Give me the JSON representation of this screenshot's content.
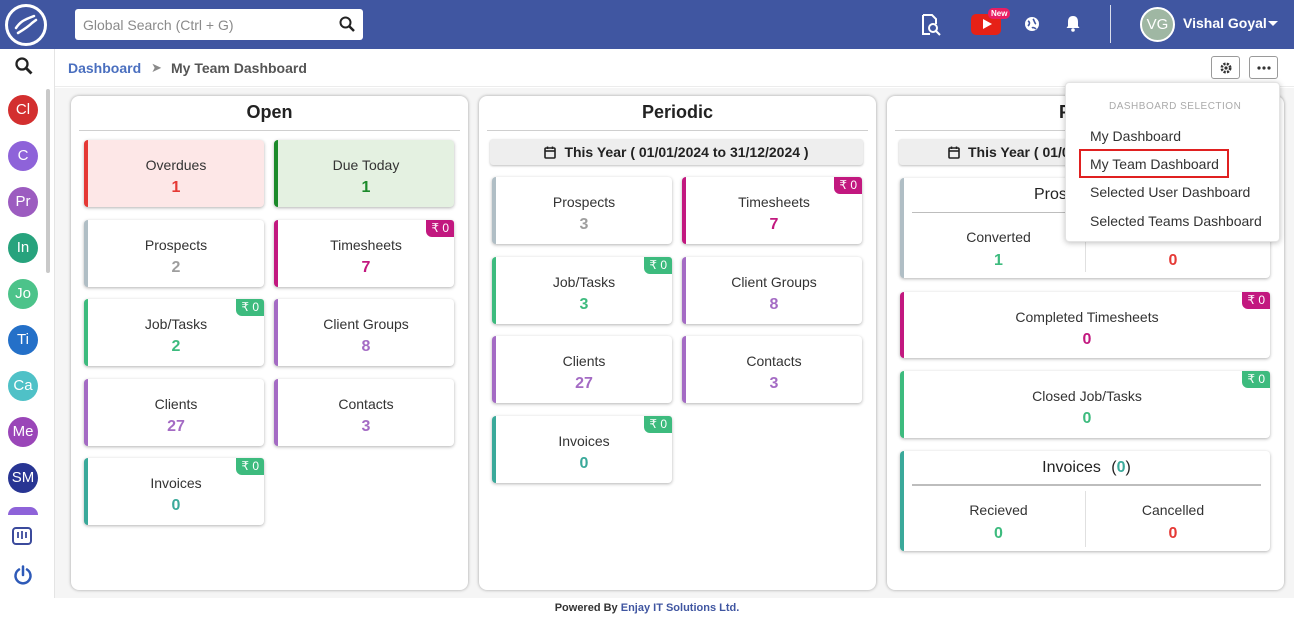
{
  "topbar": {
    "search_placeholder": "Global Search (Ctrl + G)",
    "new_badge": "New",
    "user_initials": "VG",
    "user_name": "Vishal Goyal"
  },
  "sidebar": {
    "items": [
      {
        "label": "Cl",
        "color": "#d32f2f"
      },
      {
        "label": "C",
        "color": "#8e63d9"
      },
      {
        "label": "Pr",
        "color": "#9c5cc0"
      },
      {
        "label": "In",
        "color": "#27a37d"
      },
      {
        "label": "Jo",
        "color": "#4cc38a"
      },
      {
        "label": "Ti",
        "color": "#2470c8"
      },
      {
        "label": "Ca",
        "color": "#4fc1c7"
      },
      {
        "label": "Me",
        "color": "#9a46b8"
      },
      {
        "label": "SM",
        "color": "#283593"
      }
    ]
  },
  "breadcrumb": {
    "root": "Dashboard",
    "separator": "➤",
    "current": "My Team Dashboard"
  },
  "panels": {
    "open": {
      "title": "Open",
      "cards": {
        "overdues": {
          "label": "Overdues",
          "value": "1"
        },
        "due_today": {
          "label": "Due Today",
          "value": "1"
        },
        "prospects": {
          "label": "Prospects",
          "value": "2"
        },
        "timesheets": {
          "label": "Timesheets",
          "value": "7",
          "badge": "₹ 0"
        },
        "jobtasks": {
          "label": "Job/Tasks",
          "value": "2",
          "badge": "₹ 0"
        },
        "client_groups": {
          "label": "Client Groups",
          "value": "8"
        },
        "clients": {
          "label": "Clients",
          "value": "27"
        },
        "contacts": {
          "label": "Contacts",
          "value": "3"
        },
        "invoices": {
          "label": "Invoices",
          "value": "0",
          "badge": "₹ 0"
        }
      }
    },
    "periodic": {
      "title": "Periodic",
      "date_range": "This Year ( 01/01/2024 to 31/12/2024 )",
      "cards": {
        "prospects": {
          "label": "Prospects",
          "value": "3"
        },
        "timesheets": {
          "label": "Timesheets",
          "value": "7",
          "badge": "₹ 0"
        },
        "jobtasks": {
          "label": "Job/Tasks",
          "value": "3",
          "badge": "₹ 0"
        },
        "client_groups": {
          "label": "Client Groups",
          "value": "8"
        },
        "clients": {
          "label": "Clients",
          "value": "27"
        },
        "contacts": {
          "label": "Contacts",
          "value": "3"
        },
        "invoices": {
          "label": "Invoices",
          "value": "0",
          "badge": "₹ 0"
        }
      }
    },
    "third": {
      "title": "P",
      "date_range": "This Year ( 01/0",
      "prospects_title": "Pros",
      "converted": {
        "label": "Converted",
        "value": "1"
      },
      "second_value": "0",
      "completed_timesheets": {
        "label": "Completed Timesheets",
        "value": "0",
        "badge": "₹ 0"
      },
      "closed_jobtasks": {
        "label": "Closed Job/Tasks",
        "value": "0",
        "badge": "₹ 0"
      },
      "invoices": {
        "title": "Invoices",
        "count_open": "(",
        "count": "0",
        "count_close": ")",
        "recieved": {
          "label": "Recieved",
          "value": "0"
        },
        "cancelled": {
          "label": "Cancelled",
          "value": "0"
        }
      }
    }
  },
  "dropdown": {
    "header": "DASHBOARD SELECTION",
    "items": [
      "My Dashboard",
      "My Team Dashboard",
      "Selected User Dashboard",
      "Selected Teams Dashboard"
    ]
  },
  "footer": {
    "prefix": "Powered By",
    "company": "Enjay IT Solutions Ltd."
  },
  "colors": {
    "brand": "#4056a1",
    "red": "#e53935",
    "green": "#1b8a2a",
    "gray_value": "#9e9e9e",
    "magenta": "#c2187f",
    "teal_green": "#3dbb7e",
    "purple": "#a46bc4",
    "teal": "#3aa99a"
  }
}
